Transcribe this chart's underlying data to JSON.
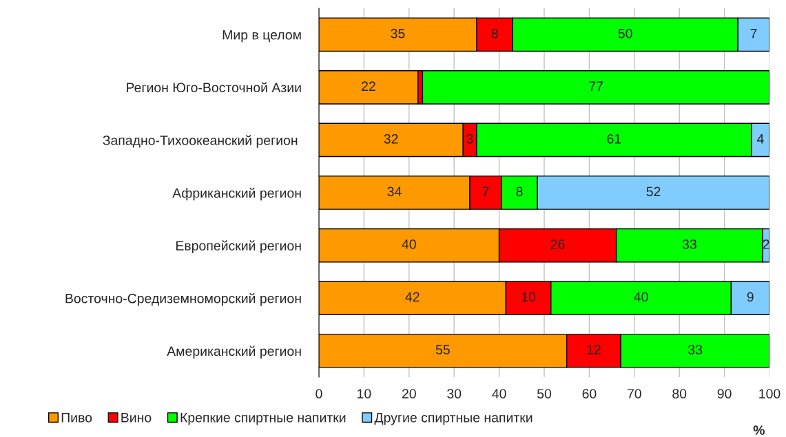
{
  "chart_data": {
    "type": "bar",
    "orientation": "horizontal",
    "stacked": true,
    "xlabel": "%",
    "categories": [
      "Мир в целом",
      "Регион Юго-Восточной Азии",
      "Западно-Тихоокеанский регион ",
      "Африканский регион",
      "Европейский регион",
      "Восточно-Средиземноморский регион",
      "Американский регион"
    ],
    "series": [
      {
        "name": "Пиво",
        "color": "#ff9900",
        "values": [
          35,
          22,
          32,
          33.5,
          40,
          41.5,
          55
        ],
        "value_labels": [
          "35",
          "22",
          "32",
          "34",
          "40",
          "42",
          "55"
        ]
      },
      {
        "name": "Вино",
        "color": "#ff0000",
        "values": [
          8,
          1,
          3,
          7,
          26,
          10,
          12
        ],
        "value_labels": [
          "8",
          null,
          "3",
          "7",
          "26",
          "10",
          "12"
        ]
      },
      {
        "name": "Крепкие спиртные напитки",
        "color": "#00ff00",
        "values": [
          50,
          77,
          61,
          8,
          32.5,
          40,
          33
        ],
        "value_labels": [
          "50",
          "77",
          "61",
          "8",
          "33",
          "40",
          "33"
        ]
      },
      {
        "name": "Другие спиртные напитки",
        "color": "#80ccff",
        "values": [
          7,
          null,
          4,
          51.5,
          1.5,
          8.5,
          null
        ],
        "value_labels": [
          "7",
          null,
          "4",
          "52",
          "2",
          "9",
          null
        ]
      }
    ],
    "xlim": [
      0,
      100
    ],
    "xticks": [
      0,
      10,
      20,
      30,
      40,
      50,
      60,
      70,
      80,
      90,
      100
    ],
    "grid": "x",
    "legend": "bottom"
  }
}
